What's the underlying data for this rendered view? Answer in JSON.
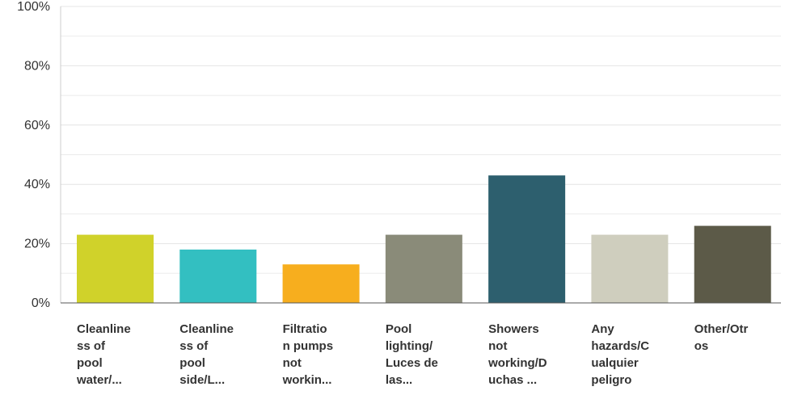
{
  "chart_data": {
    "type": "bar",
    "categories": [
      [
        "Cleanline",
        "ss of",
        "pool",
        "water/..."
      ],
      [
        "Cleanline",
        "ss of",
        "pool",
        "side/L..."
      ],
      [
        "Filtratio",
        "n pumps",
        "not",
        "workin..."
      ],
      [
        "Pool",
        "lighting/",
        "Luces de",
        "las..."
      ],
      [
        "Showers",
        "not",
        "working/D",
        "uchas ..."
      ],
      [
        "Any",
        "hazards/C",
        "ualquier",
        "peligro"
      ],
      [
        "Other/Otr",
        "os"
      ]
    ],
    "values": [
      23,
      18,
      13,
      23,
      43,
      23,
      26
    ],
    "colors": [
      "#d0d22a",
      "#33bfc1",
      "#f7ae1e",
      "#8a8b79",
      "#2d5f6e",
      "#cfcebe",
      "#5c5a48"
    ],
    "ylim": [
      0,
      100
    ],
    "yticks": [
      {
        "value": 0,
        "label": "0%"
      },
      {
        "value": 20,
        "label": "20%"
      },
      {
        "value": 40,
        "label": "40%"
      },
      {
        "value": 60,
        "label": "60%"
      },
      {
        "value": 80,
        "label": "80%"
      },
      {
        "value": 100,
        "label": "100%"
      }
    ],
    "minor_grid": [
      10,
      30,
      50,
      70,
      90
    ],
    "grid": true
  }
}
